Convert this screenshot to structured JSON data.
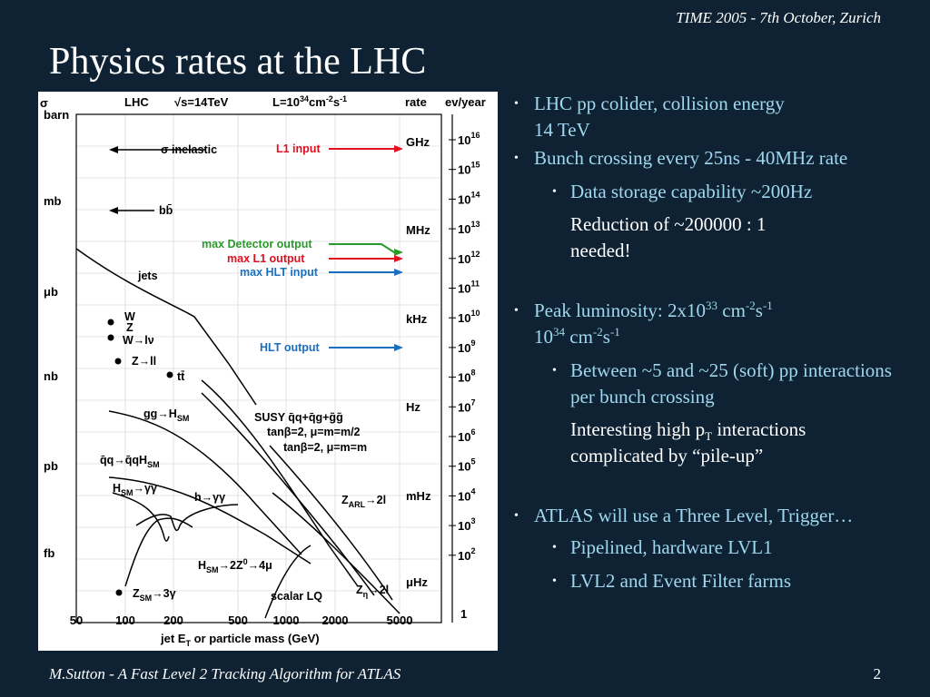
{
  "header": {
    "date": "TIME 2005 - 7th October,  Zurich"
  },
  "slide": {
    "title": "Physics rates at the LHC",
    "page_number": "2"
  },
  "footer": {
    "text": "M.Sutton - A Fast Level 2 Tracking Algorithm for ATLAS"
  },
  "bullets": {
    "b1": "LHC pp colider, collision energy",
    "b1b": "14 TeV",
    "b2": "Bunch crossing every 25ns - 40MHz rate",
    "b2_sub": "Data storage capability ~200Hz",
    "b2_note1": "Reduction of ~200000 : 1",
    "b2_note2": "needed!",
    "b3_pre": "Peak luminosity: 2x10",
    "b3_exp1": "33",
    "b3_unit_a": " cm",
    "b3_exp2": "-2",
    "b3_unit_b": "s",
    "b3_exp3": "-1",
    "b3_line2_a": "10",
    "b3_line2_exp1": "34",
    "b3_line2_b": " cm",
    "b3_line2_exp2": "-2",
    "b3_line2_c": "s",
    "b3_line2_exp3": "-1",
    "b3_sub": "Between ~5  and  ~25 (soft)  pp interactions per bunch crossing",
    "b3_note_a": "Interesting high p",
    "b3_note_sub": "T",
    "b3_note_b": "  interactions complicated by “pile-up”",
    "b4": "ATLAS will use a Three Level, Trigger…",
    "b4_sub1": "Pipelined, hardware LVL1",
    "b4_sub2": "LVL2 and Event Filter farms"
  },
  "chart_data": {
    "type": "line",
    "title_parts": {
      "lhc": "LHC",
      "energy": "√s=14TeV",
      "lumi": "L=10",
      "lumi_exp": "34",
      "lumi_unit": "cm",
      "lumi_unit_exp": "-2",
      "lumi_s": "s",
      "lumi_s_exp": "-1"
    },
    "xlabel": "jet E",
    "xlabel_sub": "T",
    "xlabel_rest": " or particle mass (GeV)",
    "xticks": [
      "50",
      "100",
      "200",
      "500",
      "1000",
      "2000",
      "5000"
    ],
    "ylabel_left": "σ",
    "left_units": [
      "barn",
      "mb",
      "μb",
      "nb",
      "pb",
      "fb"
    ],
    "rate_header": "rate",
    "rate_units": [
      "GHz",
      "MHz",
      "kHz",
      "Hz",
      "mHz",
      "μHz"
    ],
    "evyear_header": "ev/year",
    "evyear_exponents": [
      "16",
      "15",
      "14",
      "13",
      "12",
      "11",
      "10",
      "9",
      "8",
      "7",
      "6",
      "5",
      "4",
      "3",
      "2"
    ],
    "evyear_base": "10",
    "evyear_last": "1",
    "trigger_arrows": {
      "l1_input": "L1 input",
      "max_detector": "max Detector output",
      "max_l1": "max L1 output",
      "max_hlt": "max HLT input",
      "hlt_output": "HLT output"
    },
    "processes": {
      "sigma_inelastic": "σ inelastic",
      "bbbar": "bb̄",
      "jets": "jets",
      "w": "W",
      "z": "Z",
      "w_lnu": "W→lν",
      "z_ll": "Z→ll",
      "ttbar": "tt̄",
      "gg_h": "gg→H",
      "gg_h_sub": "SM",
      "susy": "SUSY q̄q+q̄g+g̃g̃",
      "susy_p1": "tanβ=2, μ=m",
      "susy_p1b": "=m",
      "susy_p1c": "/2",
      "susy_p2": "tanβ=2, μ=m",
      "susy_p2b": "=m",
      "qq_qqh": "q̄q→q̄qH",
      "qq_qqh_sub": "SM",
      "h_gamgam_sm": "H",
      "h_gamgam_sm_sub": "SM",
      "h_gamgam_sm_tail": "→γγ",
      "h_gamgam": "h→γγ",
      "z_arl": "Z",
      "z_arl_sub": "ARL",
      "z_arl_tail": "→2l",
      "h_zz4l": "H",
      "h_zz4l_sub": "SM",
      "h_zz4l_tail": "→2Z",
      "h_zz4l_exp": "0",
      "h_zz4l_end": "→4μ",
      "z_sm_3gam": "Z",
      "z_sm_3gam_sub": "SM",
      "z_sm_3gam_tail": "→3γ",
      "scalar_lq": "scalar LQ",
      "z_eta": "Z",
      "z_eta_sub": "η",
      "z_eta_tail": "→2l"
    },
    "colors": {
      "l1": "#e0101e",
      "detector": "#2a9a2a",
      "hlt": "#1a6fbf"
    }
  }
}
